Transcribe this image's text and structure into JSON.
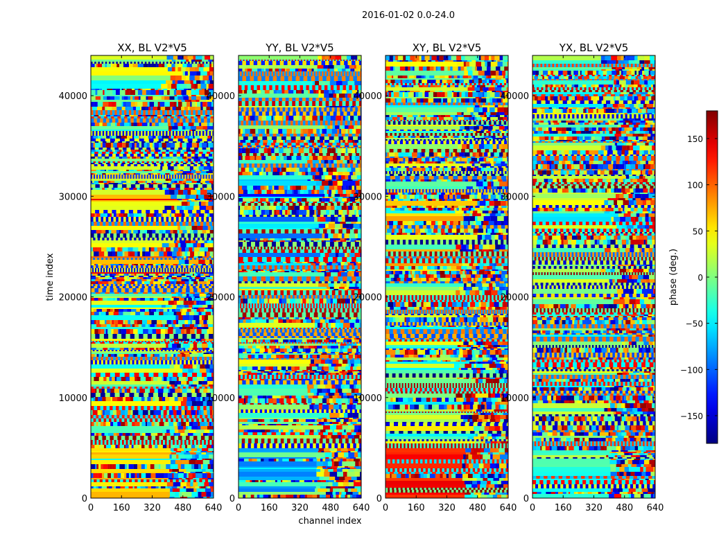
{
  "chart_data": {
    "type": "heatmap",
    "title": "2016-01-02 0.0-24.0",
    "xlabel": "channel index",
    "ylabel": "time index",
    "xlim": [
      0,
      640
    ],
    "ylim": [
      0,
      44000
    ],
    "x_ticks": [
      0,
      160,
      320,
      480,
      640
    ],
    "y_ticks": [
      0,
      10000,
      20000,
      30000,
      40000
    ],
    "panels": [
      {
        "title": "XX, BL V2*V5",
        "polarization": "XX"
      },
      {
        "title": "YY, BL V2*V5",
        "polarization": "YY"
      },
      {
        "title": "XY, BL V2*V5",
        "polarization": "XY"
      },
      {
        "title": "YX, BL V2*V5",
        "polarization": "YX"
      }
    ],
    "colorbar": {
      "label": "phase (deg.)",
      "range": [
        -180,
        180
      ],
      "ticks": [
        -150,
        -100,
        -50,
        0,
        50,
        100,
        150
      ],
      "colormap": "jet"
    }
  }
}
